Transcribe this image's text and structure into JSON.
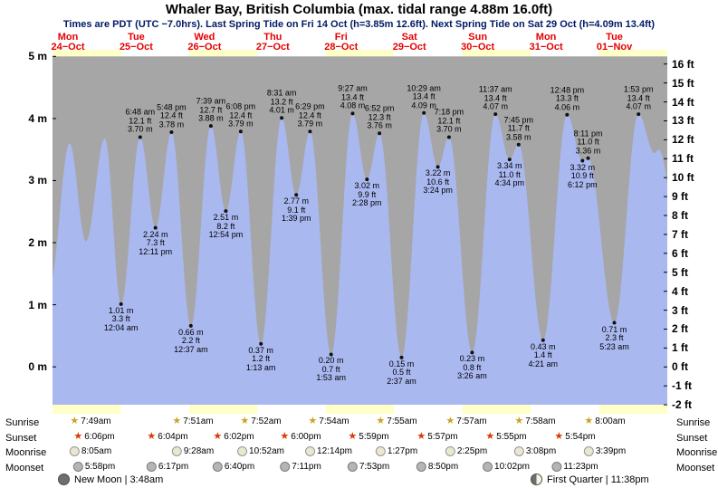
{
  "title": "Whaler Bay, British Columbia (max. tidal range 4.88m 16.0ft)",
  "subtitle": "Times are PDT (UTC −7.0hrs). Last Spring Tide on Fri 14 Oct (h=3.85m 12.6ft). Next Spring Tide on Sat 29 Oct (h=4.09m 13.4ft)",
  "colors": {
    "band_yellow": "#ffffc8",
    "band_white": "#ffffff",
    "gray_background": "#a6a6a6",
    "tide_blue": "#aab8f0",
    "day_label_red": "#e60000",
    "subtitle_navy": "#001a66",
    "sunrise_star": "#c9a227",
    "sunset_star": "#d63a00"
  },
  "chart_data": {
    "type": "area",
    "title": "Whaler Bay tide heights",
    "ylabel_left": "meters",
    "ylabel_right": "feet",
    "ylim_m": [
      -0.61,
      5
    ],
    "x_range_hours": 216,
    "days": [
      {
        "name": "Mon",
        "date": "24−Oct"
      },
      {
        "name": "Tue",
        "date": "25−Oct"
      },
      {
        "name": "Wed",
        "date": "26−Oct"
      },
      {
        "name": "Thu",
        "date": "27−Oct"
      },
      {
        "name": "Fri",
        "date": "28−Oct"
      },
      {
        "name": "Sat",
        "date": "29−Oct"
      },
      {
        "name": "Sun",
        "date": "30−Oct"
      },
      {
        "name": "Mon",
        "date": "31−Oct"
      },
      {
        "name": "Tue",
        "date": "01−Nov"
      }
    ],
    "y_axis_left": [
      "5 m",
      "4 m",
      "3 m",
      "2 m",
      "1 m",
      "0 m"
    ],
    "y_axis_right": [
      "16 ft",
      "15 ft",
      "14 ft",
      "13 ft",
      "12 ft",
      "11 ft",
      "10 ft",
      "9 ft",
      "8 ft",
      "7 ft",
      "6 ft",
      "5 ft",
      "4 ft",
      "3 ft",
      "2 ft",
      "1 ft",
      "0 ft",
      "-1 ft",
      "-2 ft"
    ],
    "tide_events": [
      {
        "day": 1,
        "type": "low",
        "m": "1.01 m",
        "ft": "3.3 ft",
        "time": "12:04 am",
        "t": 24.07,
        "h": 1.01
      },
      {
        "day": 1,
        "type": "high",
        "time": "6:48 am",
        "ft": "12.1 ft",
        "m": "3.70 m",
        "t": 30.8,
        "h": 3.7
      },
      {
        "day": 1,
        "type": "low",
        "m": "2.24 m",
        "ft": "7.3 ft",
        "time": "12:11 pm",
        "t": 36.18,
        "h": 2.24
      },
      {
        "day": 1,
        "type": "high",
        "time": "5:48 pm",
        "ft": "12.4 ft",
        "m": "3.78 m",
        "t": 41.8,
        "h": 3.78
      },
      {
        "day": 2,
        "type": "low",
        "m": "0.66 m",
        "ft": "2.2 ft",
        "time": "12:37 am",
        "t": 48.62,
        "h": 0.66
      },
      {
        "day": 2,
        "type": "high",
        "time": "7:39 am",
        "ft": "12.7 ft",
        "m": "3.88 m",
        "t": 55.65,
        "h": 3.88
      },
      {
        "day": 2,
        "type": "low",
        "m": "2.51 m",
        "ft": "8.2 ft",
        "time": "12:54 pm",
        "t": 60.9,
        "h": 2.51
      },
      {
        "day": 2,
        "type": "high",
        "time": "6:08 pm",
        "ft": "12.4 ft",
        "m": "3.79 m",
        "t": 66.13,
        "h": 3.79
      },
      {
        "day": 3,
        "type": "low",
        "m": "0.37 m",
        "ft": "1.2 ft",
        "time": "1:13 am",
        "t": 73.22,
        "h": 0.37
      },
      {
        "day": 3,
        "type": "high",
        "time": "8:31 am",
        "ft": "13.2 ft",
        "m": "4.01 m",
        "t": 80.52,
        "h": 4.01
      },
      {
        "day": 3,
        "type": "low",
        "m": "2.77 m",
        "ft": "9.1 ft",
        "time": "1:39 pm",
        "t": 85.65,
        "h": 2.77
      },
      {
        "day": 3,
        "type": "high",
        "time": "6:29 pm",
        "ft": "12.4 ft",
        "m": "3.79 m",
        "t": 90.48,
        "h": 3.79
      },
      {
        "day": 4,
        "type": "low",
        "m": "0.20 m",
        "ft": "0.7 ft",
        "time": "1:53 am",
        "t": 97.88,
        "h": 0.2
      },
      {
        "day": 4,
        "type": "high",
        "time": "9:27 am",
        "ft": "13.4 ft",
        "m": "4.08 m",
        "t": 105.45,
        "h": 4.08
      },
      {
        "day": 4,
        "type": "low",
        "m": "3.02 m",
        "ft": "9.9 ft",
        "time": "2:28 pm",
        "t": 110.47,
        "h": 3.02
      },
      {
        "day": 4,
        "type": "high",
        "time": "6:52 pm",
        "ft": "12.3 ft",
        "m": "3.76 m",
        "t": 114.87,
        "h": 3.76
      },
      {
        "day": 5,
        "type": "low",
        "m": "0.15 m",
        "ft": "0.5 ft",
        "time": "2:37 am",
        "t": 122.62,
        "h": 0.15
      },
      {
        "day": 5,
        "type": "high",
        "time": "10:29 am",
        "ft": "13.4 ft",
        "m": "4.09 m",
        "t": 130.48,
        "h": 4.09
      },
      {
        "day": 5,
        "type": "low",
        "m": "3.22 m",
        "ft": "10.6 ft",
        "time": "3:24 pm",
        "t": 135.4,
        "h": 3.22
      },
      {
        "day": 5,
        "type": "high",
        "time": "7:18 pm",
        "ft": "12.1 ft",
        "m": "3.70 m",
        "t": 139.3,
        "h": 3.7
      },
      {
        "day": 6,
        "type": "low",
        "m": "0.23 m",
        "ft": "0.8 ft",
        "time": "3:26 am",
        "t": 147.43,
        "h": 0.23
      },
      {
        "day": 6,
        "type": "high",
        "time": "11:37 am",
        "ft": "13.4 ft",
        "m": "4.07 m",
        "t": 155.62,
        "h": 4.07
      },
      {
        "day": 6,
        "type": "low",
        "m": "3.34 m",
        "ft": "11.0 ft",
        "time": "4:34 pm",
        "t": 160.57,
        "h": 3.34
      },
      {
        "day": 6,
        "type": "high",
        "time": "7:45 pm",
        "ft": "11.7 ft",
        "m": "3.58 m",
        "t": 163.75,
        "h": 3.58
      },
      {
        "day": 7,
        "type": "low",
        "m": "0.43 m",
        "ft": "1.4 ft",
        "time": "4:21 am",
        "t": 172.35,
        "h": 0.43
      },
      {
        "day": 7,
        "type": "high",
        "time": "12:48 pm",
        "ft": "13.3 ft",
        "m": "4.06 m",
        "t": 180.8,
        "h": 4.06
      },
      {
        "day": 7,
        "type": "low",
        "m": "3.32 m",
        "ft": "10.9 ft",
        "time": "6:12 pm",
        "t": 186.2,
        "h": 3.32
      },
      {
        "day": 7,
        "type": "high",
        "time": "8:11 pm",
        "ft": "11.0 ft",
        "m": "3.36 m",
        "t": 188.18,
        "h": 3.36
      },
      {
        "day": 8,
        "type": "low",
        "m": "0.71 m",
        "ft": "2.3 ft",
        "time": "5:23 am",
        "t": 197.38,
        "h": 0.71
      },
      {
        "day": 8,
        "type": "high",
        "time": "1:53 pm",
        "ft": "13.4 ft",
        "m": "4.07 m",
        "t": 205.88,
        "h": 4.07
      }
    ]
  },
  "astro": {
    "row_labels": [
      "Sunrise",
      "Sunset",
      "Moonrise",
      "Moonset"
    ],
    "sunrise": [
      "7:49am",
      "7:51am",
      "7:52am",
      "7:54am",
      "7:55am",
      "7:57am",
      "7:58am",
      "8:00am"
    ],
    "sunset": [
      "6:06pm",
      "6:04pm",
      "6:02pm",
      "6:00pm",
      "5:59pm",
      "5:57pm",
      "5:55pm",
      "5:54pm"
    ],
    "moonrise": [
      "8:05am",
      "9:28am",
      "10:52am",
      "12:14pm",
      "1:27pm",
      "2:25pm",
      "3:08pm",
      "3:39pm"
    ],
    "moonset": [
      "5:58pm",
      "6:17pm",
      "6:40pm",
      "7:11pm",
      "7:53pm",
      "8:50pm",
      "10:02pm",
      "11:23pm"
    ],
    "phases": [
      {
        "label": "New Moon | 3:48am"
      },
      {
        "label": "First Quarter | 11:38pm"
      }
    ]
  }
}
